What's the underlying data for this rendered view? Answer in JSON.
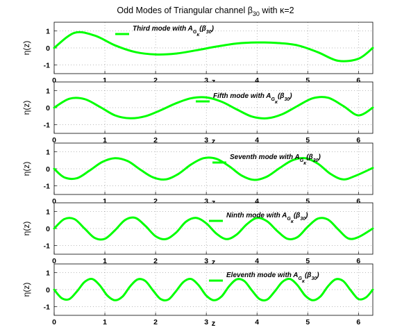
{
  "figure": {
    "title_prefix": "Odd Modes of Triangular channel ",
    "title_beta": "β",
    "title_beta_sub": "30",
    "title_suffix": " with κ=2"
  },
  "chart_data": [
    {
      "type": "line",
      "mode": 3,
      "xlabel": "z",
      "ylabel": "η(z)",
      "xlim": [
        0,
        6.2832
      ],
      "ylim": [
        -1.5,
        1.5
      ],
      "x_ticks": [
        0,
        1,
        2,
        3,
        4,
        5,
        6
      ],
      "y_ticks": [
        1,
        0,
        -1
      ],
      "grid": true,
      "color": "#00ff00",
      "legend": {
        "name": "Third mode with A",
        "sub1": "G",
        "sub2": "κ",
        "arg": "(β",
        "arg_sub": "30",
        "close": ")"
      },
      "x": [
        0,
        0.4,
        0.8,
        1.2,
        1.6,
        2.0,
        2.4,
        2.8,
        3.2,
        3.6,
        4.0,
        4.4,
        4.8,
        5.2,
        5.6,
        6.0,
        6.2832
      ],
      "values": [
        0,
        0.88,
        0.72,
        0.15,
        -0.24,
        -0.38,
        -0.33,
        -0.14,
        0.08,
        0.26,
        0.32,
        0.29,
        0.15,
        -0.25,
        -0.75,
        -0.63,
        0
      ]
    },
    {
      "type": "line",
      "mode": 5,
      "xlabel": "z",
      "ylabel": "η(z)",
      "xlim": [
        0,
        6.2832
      ],
      "ylim": [
        -1.5,
        1.5
      ],
      "x_ticks": [
        0,
        1,
        2,
        3,
        4,
        5,
        6
      ],
      "y_ticks": [
        1,
        0,
        -1
      ],
      "grid": true,
      "color": "#00ff00",
      "legend": {
        "name": "Fifth mode with A",
        "sub1": "G",
        "sub2": "κ",
        "arg": "(β",
        "arg_sub": "30",
        "close": ")"
      },
      "x": [
        0,
        0.3,
        0.6,
        0.9,
        1.2,
        1.5,
        1.8,
        2.1,
        2.4,
        2.7,
        3.0,
        3.3,
        3.6,
        3.9,
        4.2,
        4.5,
        4.8,
        5.1,
        5.4,
        5.7,
        6.0,
        6.2832
      ],
      "values": [
        0,
        0.52,
        0.5,
        0.05,
        -0.45,
        -0.62,
        -0.5,
        -0.15,
        0.25,
        0.55,
        0.6,
        0.35,
        -0.1,
        -0.52,
        -0.62,
        -0.38,
        0.1,
        0.55,
        0.58,
        0.1,
        -0.45,
        0
      ]
    },
    {
      "type": "line",
      "mode": 7,
      "xlabel": "z",
      "ylabel": "η(z)",
      "xlim": [
        0,
        6.2832
      ],
      "ylim": [
        -1.5,
        1.5
      ],
      "x_ticks": [
        0,
        1,
        2,
        3,
        4,
        5,
        6
      ],
      "y_ticks": [
        1,
        0,
        -1
      ],
      "grid": true,
      "color": "#00ff00",
      "legend": {
        "name": "Seventh mode with A",
        "sub1": "G",
        "sub2": "κ",
        "arg": "(β",
        "arg_sub": "30",
        "close": ")"
      },
      "x": [
        0,
        0.2,
        0.45,
        0.7,
        0.95,
        1.2,
        1.45,
        1.7,
        1.95,
        2.2,
        2.45,
        2.7,
        2.95,
        3.2,
        3.45,
        3.7,
        3.95,
        4.2,
        4.45,
        4.7,
        4.95,
        5.2,
        5.45,
        5.7,
        5.95,
        6.2832
      ],
      "values": [
        0,
        -0.5,
        -0.55,
        -0.1,
        0.4,
        0.62,
        0.45,
        -0.05,
        -0.5,
        -0.62,
        -0.3,
        0.25,
        0.62,
        0.58,
        0.15,
        -0.4,
        -0.65,
        -0.45,
        0.05,
        0.5,
        0.62,
        0.3,
        -0.3,
        -0.62,
        -0.4,
        0.05
      ]
    },
    {
      "type": "line",
      "mode": 9,
      "xlabel": "z",
      "ylabel": "η(z)",
      "xlim": [
        0,
        6.2832
      ],
      "ylim": [
        -1.5,
        1.5
      ],
      "x_ticks": [
        0,
        1,
        2,
        3,
        4,
        5,
        6
      ],
      "y_ticks": [
        1,
        0,
        -1
      ],
      "grid": true,
      "color": "#00ff00",
      "legend": {
        "name": "Ninth mode with A",
        "sub1": "G",
        "sub2": "κ",
        "arg": "(β",
        "arg_sub": "30",
        "close": ")"
      },
      "x": [
        0,
        0.2,
        0.4,
        0.6,
        0.8,
        1.0,
        1.2,
        1.4,
        1.6,
        1.8,
        2.0,
        2.2,
        2.4,
        2.6,
        2.8,
        3.0,
        3.2,
        3.4,
        3.6,
        3.8,
        4.0,
        4.2,
        4.4,
        4.6,
        4.8,
        5.0,
        5.2,
        5.4,
        5.6,
        5.8,
        6.0,
        6.2832
      ],
      "values": [
        0,
        0.55,
        0.55,
        0.0,
        -0.55,
        -0.6,
        -0.1,
        0.5,
        0.62,
        0.15,
        -0.45,
        -0.62,
        -0.25,
        0.4,
        0.62,
        0.3,
        -0.3,
        -0.62,
        -0.35,
        0.25,
        0.62,
        0.42,
        -0.15,
        -0.6,
        -0.5,
        0.1,
        0.58,
        0.52,
        -0.05,
        -0.58,
        -0.5,
        0
      ]
    },
    {
      "type": "line",
      "mode": 11,
      "xlabel": "z",
      "ylabel": "η(z)",
      "xlim": [
        0,
        6.2832
      ],
      "ylim": [
        -1.5,
        1.5
      ],
      "x_ticks": [
        0,
        1,
        2,
        3,
        4,
        5,
        6
      ],
      "y_ticks": [
        1,
        0,
        -1
      ],
      "grid": true,
      "color": "#00ff00",
      "legend": {
        "name": "Eleventh mode with A",
        "sub1": "G",
        "sub2": "κ",
        "arg": "(β",
        "arg_sub": "30",
        "close": ")"
      },
      "x": [
        0,
        0.15,
        0.3,
        0.45,
        0.6,
        0.75,
        0.9,
        1.05,
        1.2,
        1.35,
        1.5,
        1.65,
        1.8,
        1.95,
        2.1,
        2.25,
        2.4,
        2.55,
        2.7,
        2.85,
        3.0,
        3.15,
        3.3,
        3.45,
        3.6,
        3.75,
        3.9,
        4.05,
        4.2,
        4.35,
        4.5,
        4.65,
        4.8,
        4.95,
        5.1,
        5.25,
        5.4,
        5.55,
        5.7,
        5.85,
        6.0,
        6.15,
        6.2832
      ],
      "values": [
        0,
        -0.5,
        -0.55,
        -0.1,
        0.45,
        0.62,
        0.25,
        -0.35,
        -0.62,
        -0.4,
        0.2,
        0.6,
        0.5,
        -0.05,
        -0.55,
        -0.58,
        -0.1,
        0.45,
        0.62,
        0.25,
        -0.35,
        -0.62,
        -0.4,
        0.2,
        0.6,
        0.5,
        -0.05,
        -0.55,
        -0.58,
        -0.1,
        0.45,
        0.62,
        0.25,
        -0.35,
        -0.62,
        -0.4,
        0.2,
        0.6,
        0.5,
        -0.05,
        -0.55,
        -0.45,
        0
      ]
    }
  ]
}
